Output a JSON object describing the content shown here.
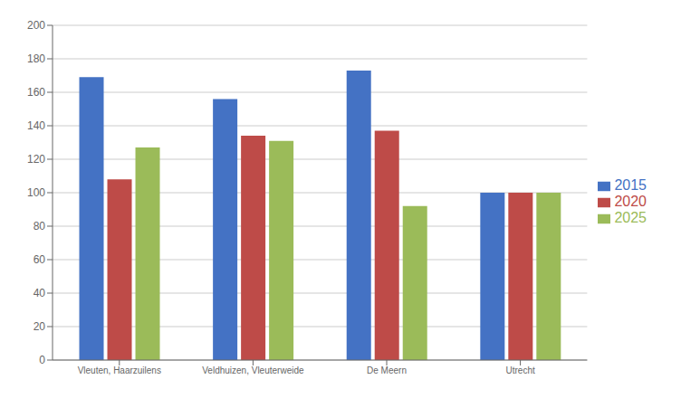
{
  "chart_data": {
    "type": "bar",
    "categories": [
      "Vleuten, Haarzuilens",
      "Veldhuizen, Vleuterweide",
      "De Meern",
      "Utrecht"
    ],
    "series": [
      {
        "name": "2015",
        "color": "#4472C4",
        "values": [
          169,
          156,
          173,
          100
        ]
      },
      {
        "name": "2020",
        "color": "#BE4B48",
        "values": [
          108,
          134,
          137,
          100
        ]
      },
      {
        "name": "2025",
        "color": "#9BBB59",
        "values": [
          127,
          131,
          92,
          100
        ]
      }
    ],
    "ylim": [
      0,
      200
    ],
    "yticks": [
      0,
      20,
      40,
      60,
      80,
      100,
      120,
      140,
      160,
      180,
      200
    ],
    "grid": true,
    "legend": "right"
  }
}
